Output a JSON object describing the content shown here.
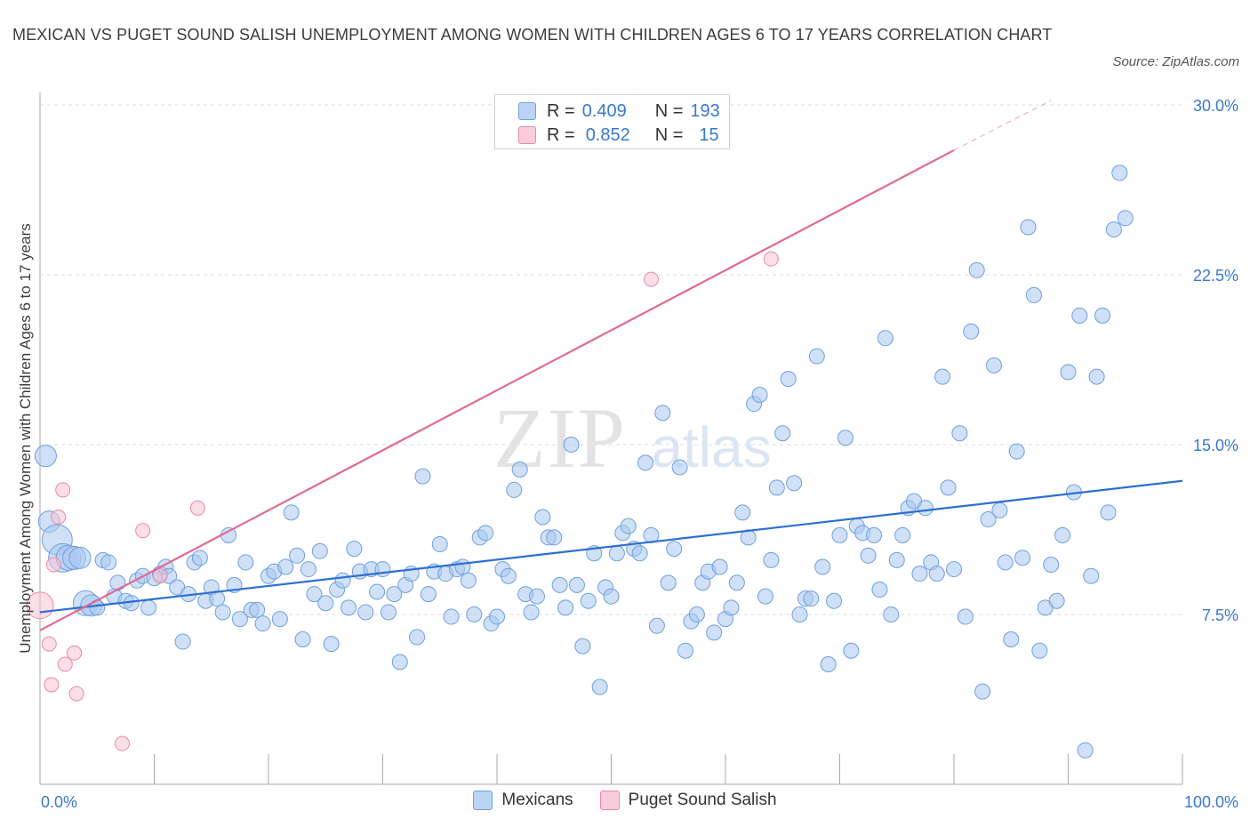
{
  "title": "MEXICAN VS PUGET SOUND SALISH UNEMPLOYMENT AMONG WOMEN WITH CHILDREN AGES 6 TO 17 YEARS CORRELATION CHART",
  "source": "Source: ZipAtlas.com",
  "watermark": {
    "zip": "ZIP",
    "atlas": "atlas"
  },
  "legend_stats": [
    {
      "series": "Mexicans",
      "r_label": "R =",
      "r": "0.409",
      "n_label": "N =",
      "n": "193",
      "color": "#a9c8f0"
    },
    {
      "series": "Puget Sound Salish",
      "r_label": "R =",
      "r": "0.852",
      "n_label": "N =",
      "n": "15",
      "color": "#f5b8c8"
    }
  ],
  "colors": {
    "mexicans_fill": "#a9c8f0",
    "mexicans_stroke": "#6e9fdc",
    "mexicans_line": "#2d6fd1",
    "salish_fill": "#f7c4d2",
    "salish_stroke": "#e98aa5",
    "salish_line": "#e06a91",
    "axis_label": "#3a78c9",
    "grid": "#dedede"
  },
  "chart_data": {
    "type": "scatter",
    "title": "MEXICAN VS PUGET SOUND SALISH UNEMPLOYMENT AMONG WOMEN WITH CHILDREN AGES 6 TO 17 YEARS CORRELATION CHART",
    "xlabel": "",
    "ylabel": "Unemployment Among Women with Children Ages 6 to 17 years",
    "xlim": [
      0,
      100
    ],
    "ylim": [
      0,
      30
    ],
    "x_tick_labels": [
      "0.0%",
      "100.0%"
    ],
    "y_ticks": [
      7.5,
      15.0,
      22.5,
      30.0
    ],
    "y_tick_labels": [
      "7.5%",
      "15.0%",
      "22.5%",
      "30.0%"
    ],
    "grid": true,
    "legend_position": "bottom",
    "series": [
      {
        "name": "Mexicans",
        "r": 0.409,
        "n": 193,
        "trend": {
          "x": [
            0,
            100
          ],
          "y": [
            7.6,
            13.4
          ]
        },
        "points": [
          [
            0.5,
            14.5
          ],
          [
            0.8,
            11.6
          ],
          [
            1.5,
            10.8
          ],
          [
            2,
            10
          ],
          [
            2.5,
            10
          ],
          [
            3,
            10
          ],
          [
            3.5,
            10
          ],
          [
            4,
            8
          ],
          [
            4.5,
            7.9
          ],
          [
            5,
            7.8
          ],
          [
            5.5,
            9.9
          ],
          [
            6,
            9.8
          ],
          [
            6.5,
            8.3
          ],
          [
            6.8,
            8.9
          ],
          [
            7.5,
            8.1
          ],
          [
            8,
            8
          ],
          [
            8.5,
            9
          ],
          [
            9,
            9.2
          ],
          [
            9.5,
            7.8
          ],
          [
            10,
            9.1
          ],
          [
            10.5,
            9.3
          ],
          [
            11,
            9.6
          ],
          [
            11.3,
            9.2
          ],
          [
            12,
            8.7
          ],
          [
            12.5,
            6.3
          ],
          [
            13,
            8.4
          ],
          [
            13.5,
            9.8
          ],
          [
            14,
            10
          ],
          [
            14.5,
            8.1
          ],
          [
            15,
            8.7
          ],
          [
            15.5,
            8.2
          ],
          [
            16,
            7.6
          ],
          [
            16.5,
            11
          ],
          [
            17,
            8.8
          ],
          [
            17.5,
            7.3
          ],
          [
            18,
            9.8
          ],
          [
            18.5,
            7.7
          ],
          [
            19,
            7.7
          ],
          [
            19.5,
            7.1
          ],
          [
            20,
            9.2
          ],
          [
            20.5,
            9.4
          ],
          [
            21,
            7.3
          ],
          [
            21.5,
            9.6
          ],
          [
            22,
            12
          ],
          [
            22.5,
            10.1
          ],
          [
            23,
            6.4
          ],
          [
            23.5,
            9.5
          ],
          [
            24,
            8.4
          ],
          [
            24.5,
            10.3
          ],
          [
            25,
            8
          ],
          [
            25.5,
            6.2
          ],
          [
            26,
            8.6
          ],
          [
            26.5,
            9
          ],
          [
            27,
            7.8
          ],
          [
            27.5,
            10.4
          ],
          [
            28,
            9.4
          ],
          [
            28.5,
            7.6
          ],
          [
            29,
            9.5
          ],
          [
            29.5,
            8.5
          ],
          [
            30,
            9.5
          ],
          [
            30.5,
            7.6
          ],
          [
            31,
            8.4
          ],
          [
            31.5,
            5.4
          ],
          [
            32,
            8.8
          ],
          [
            32.5,
            9.3
          ],
          [
            33,
            6.5
          ],
          [
            33.5,
            13.6
          ],
          [
            34,
            8.4
          ],
          [
            34.5,
            9.4
          ],
          [
            35,
            10.6
          ],
          [
            35.5,
            9.3
          ],
          [
            36,
            7.4
          ],
          [
            36.5,
            9.5
          ],
          [
            37,
            9.6
          ],
          [
            37.5,
            9
          ],
          [
            38,
            7.5
          ],
          [
            38.5,
            10.9
          ],
          [
            39,
            11.1
          ],
          [
            39.5,
            7.1
          ],
          [
            40,
            7.4
          ],
          [
            40.5,
            9.5
          ],
          [
            41,
            9.2
          ],
          [
            41.5,
            13
          ],
          [
            42,
            13.9
          ],
          [
            42.5,
            8.4
          ],
          [
            43,
            7.6
          ],
          [
            43.5,
            8.3
          ],
          [
            44,
            11.8
          ],
          [
            44.5,
            10.9
          ],
          [
            45,
            10.9
          ],
          [
            45.5,
            8.8
          ],
          [
            46,
            7.8
          ],
          [
            46.5,
            15
          ],
          [
            47,
            8.8
          ],
          [
            47.5,
            6.1
          ],
          [
            48,
            8.1
          ],
          [
            48.5,
            10.2
          ],
          [
            49,
            4.3
          ],
          [
            49.5,
            8.7
          ],
          [
            50,
            8.3
          ],
          [
            50.5,
            10.2
          ],
          [
            51,
            11.1
          ],
          [
            51.5,
            11.4
          ],
          [
            52,
            10.4
          ],
          [
            52.5,
            10.2
          ],
          [
            53,
            14.2
          ],
          [
            53.5,
            11
          ],
          [
            54,
            7
          ],
          [
            54.5,
            16.4
          ],
          [
            55,
            8.9
          ],
          [
            55.5,
            10.4
          ],
          [
            56,
            14
          ],
          [
            56.5,
            5.9
          ],
          [
            57,
            7.2
          ],
          [
            57.5,
            7.5
          ],
          [
            58,
            8.9
          ],
          [
            58.5,
            9.4
          ],
          [
            59,
            6.7
          ],
          [
            59.5,
            9.6
          ],
          [
            60,
            7.3
          ],
          [
            60.5,
            7.8
          ],
          [
            61,
            8.9
          ],
          [
            61.5,
            12
          ],
          [
            62,
            10.9
          ],
          [
            62.5,
            16.8
          ],
          [
            63,
            17.2
          ],
          [
            63.5,
            8.3
          ],
          [
            64,
            9.9
          ],
          [
            64.5,
            13.1
          ],
          [
            65,
            15.5
          ],
          [
            65.5,
            17.9
          ],
          [
            66,
            13.3
          ],
          [
            66.5,
            7.5
          ],
          [
            67,
            8.2
          ],
          [
            67.5,
            8.2
          ],
          [
            68,
            18.9
          ],
          [
            68.5,
            9.6
          ],
          [
            69,
            5.3
          ],
          [
            69.5,
            8.1
          ],
          [
            70,
            11
          ],
          [
            70.5,
            15.3
          ],
          [
            71,
            5.9
          ],
          [
            71.5,
            11.4
          ],
          [
            72,
            11.1
          ],
          [
            72.5,
            10.1
          ],
          [
            73,
            11
          ],
          [
            73.5,
            8.6
          ],
          [
            74,
            19.7
          ],
          [
            74.5,
            7.5
          ],
          [
            75,
            9.9
          ],
          [
            75.5,
            11
          ],
          [
            76,
            12.2
          ],
          [
            76.5,
            12.5
          ],
          [
            77,
            9.3
          ],
          [
            77.5,
            12.2
          ],
          [
            78,
            9.8
          ],
          [
            78.5,
            9.3
          ],
          [
            79,
            18
          ],
          [
            79.5,
            13.1
          ],
          [
            80,
            9.5
          ],
          [
            80.5,
            15.5
          ],
          [
            81,
            7.4
          ],
          [
            81.5,
            20
          ],
          [
            82,
            22.7
          ],
          [
            82.5,
            4.1
          ],
          [
            83,
            11.7
          ],
          [
            83.5,
            18.5
          ],
          [
            84,
            12.1
          ],
          [
            84.5,
            9.8
          ],
          [
            85,
            6.4
          ],
          [
            85.5,
            14.7
          ],
          [
            86,
            10
          ],
          [
            86.5,
            24.6
          ],
          [
            87,
            21.6
          ],
          [
            87.5,
            5.9
          ],
          [
            88,
            7.8
          ],
          [
            88.5,
            9.7
          ],
          [
            89,
            8.1
          ],
          [
            89.5,
            11
          ],
          [
            90,
            18.2
          ],
          [
            90.5,
            12.9
          ],
          [
            91,
            20.7
          ],
          [
            91.5,
            1.5
          ],
          [
            92,
            9.2
          ],
          [
            92.5,
            18
          ],
          [
            93,
            20.7
          ],
          [
            93.5,
            12
          ],
          [
            94,
            24.5
          ],
          [
            94.5,
            27
          ],
          [
            95,
            25
          ]
        ]
      },
      {
        "name": "Puget Sound Salish",
        "r": 0.852,
        "n": 15,
        "trend": {
          "x": [
            0,
            80
          ],
          "y": [
            6.8,
            28
          ]
        },
        "trend_dashed": {
          "x": [
            80,
            88.5
          ],
          "y": [
            28,
            30.2
          ]
        },
        "points": [
          [
            0,
            7.9
          ],
          [
            0.8,
            6.2
          ],
          [
            1,
            4.4
          ],
          [
            1.2,
            9.7
          ],
          [
            1.6,
            11.8
          ],
          [
            2,
            13
          ],
          [
            2.2,
            5.3
          ],
          [
            3,
            5.8
          ],
          [
            3.2,
            4
          ],
          [
            7.2,
            1.8
          ],
          [
            9,
            11.2
          ],
          [
            10.5,
            9.2
          ],
          [
            13.8,
            12.2
          ],
          [
            53.5,
            22.3
          ],
          [
            64,
            23.2
          ]
        ]
      }
    ]
  }
}
